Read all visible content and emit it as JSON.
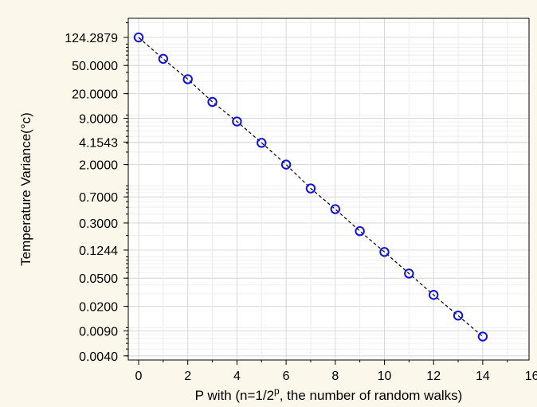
{
  "chart_data": {
    "type": "scatter",
    "xlabel_prefix": "P with (n=1/2",
    "xlabel_sup": "p",
    "xlabel_suffix": ", the number of random walks)",
    "ylabel": "Temperature Variance(°c)",
    "y_scale": "log",
    "xlim": [
      -1,
      16
    ],
    "ylim": [
      0.0035,
      200
    ],
    "grid": true,
    "x_ticks": [
      0,
      2,
      4,
      6,
      8,
      10,
      12,
      14,
      16
    ],
    "x_tick_labels": [
      "0",
      "2",
      "4",
      "6",
      "8",
      "10",
      "12",
      "14",
      "16"
    ],
    "y_ticks": [
      124.2879,
      50,
      20,
      9,
      4.1543,
      2,
      0.7,
      0.3,
      0.1244,
      0.05,
      0.02,
      0.009,
      0.004
    ],
    "y_tick_labels": [
      "124.2879",
      "50.0000",
      "20.0000",
      "9.0000",
      "4.1543",
      "2.0000",
      "0.7000",
      "0.3000",
      "0.1244",
      "0.0500",
      "0.0200",
      "0.0090",
      "0.0040"
    ],
    "series": [
      {
        "x": [
          0,
          1,
          2,
          3,
          4,
          5,
          6,
          7,
          8,
          9,
          10,
          11,
          12,
          13,
          14
        ],
        "y": [
          124.2879,
          62.0,
          32.0,
          15.3,
          8.1,
          4.05,
          2.0,
          0.92,
          0.47,
          0.23,
          0.117,
          0.058,
          0.029,
          0.0148,
          0.0075
        ],
        "marker": "open-circle",
        "line": "dashed",
        "marker_color": "#1111dd",
        "line_color": "#000000"
      }
    ]
  }
}
